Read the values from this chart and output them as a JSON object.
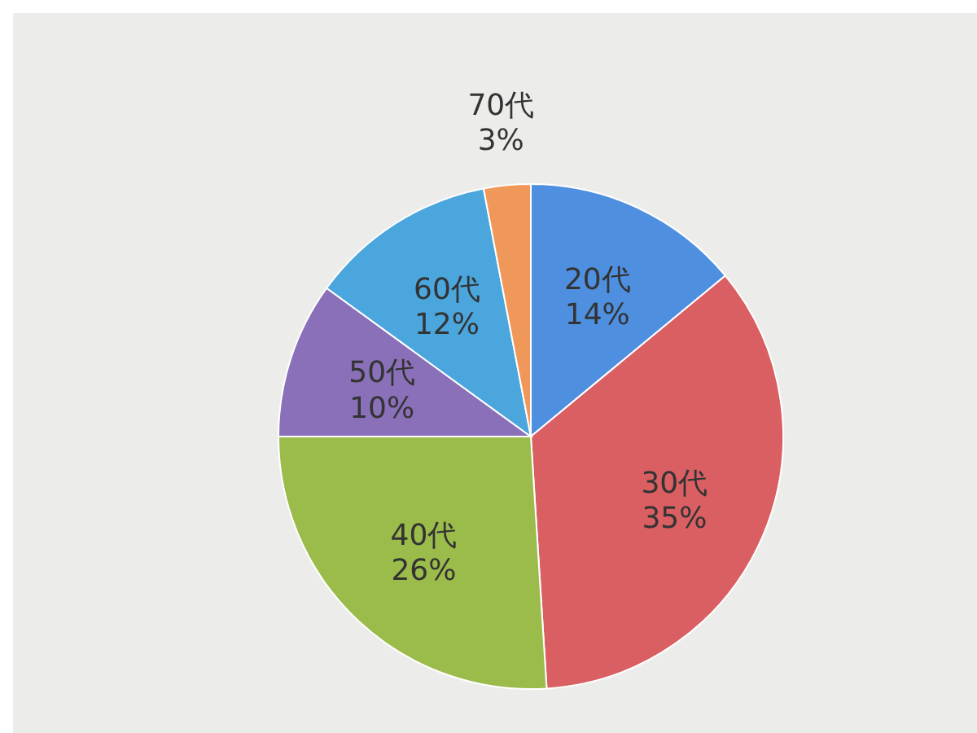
{
  "chart_data": {
    "type": "pie",
    "categories": [
      "20代",
      "30代",
      "40代",
      "50代",
      "60代",
      "70代"
    ],
    "values": [
      14,
      35,
      26,
      10,
      12,
      3
    ],
    "colors": [
      "#4f8fe0",
      "#d95f63",
      "#9bbb4a",
      "#8a70b8",
      "#4aa6dc",
      "#f0975a"
    ],
    "value_labels": [
      "14%",
      "35%",
      "26%",
      "10%",
      "12%",
      "3%"
    ]
  }
}
